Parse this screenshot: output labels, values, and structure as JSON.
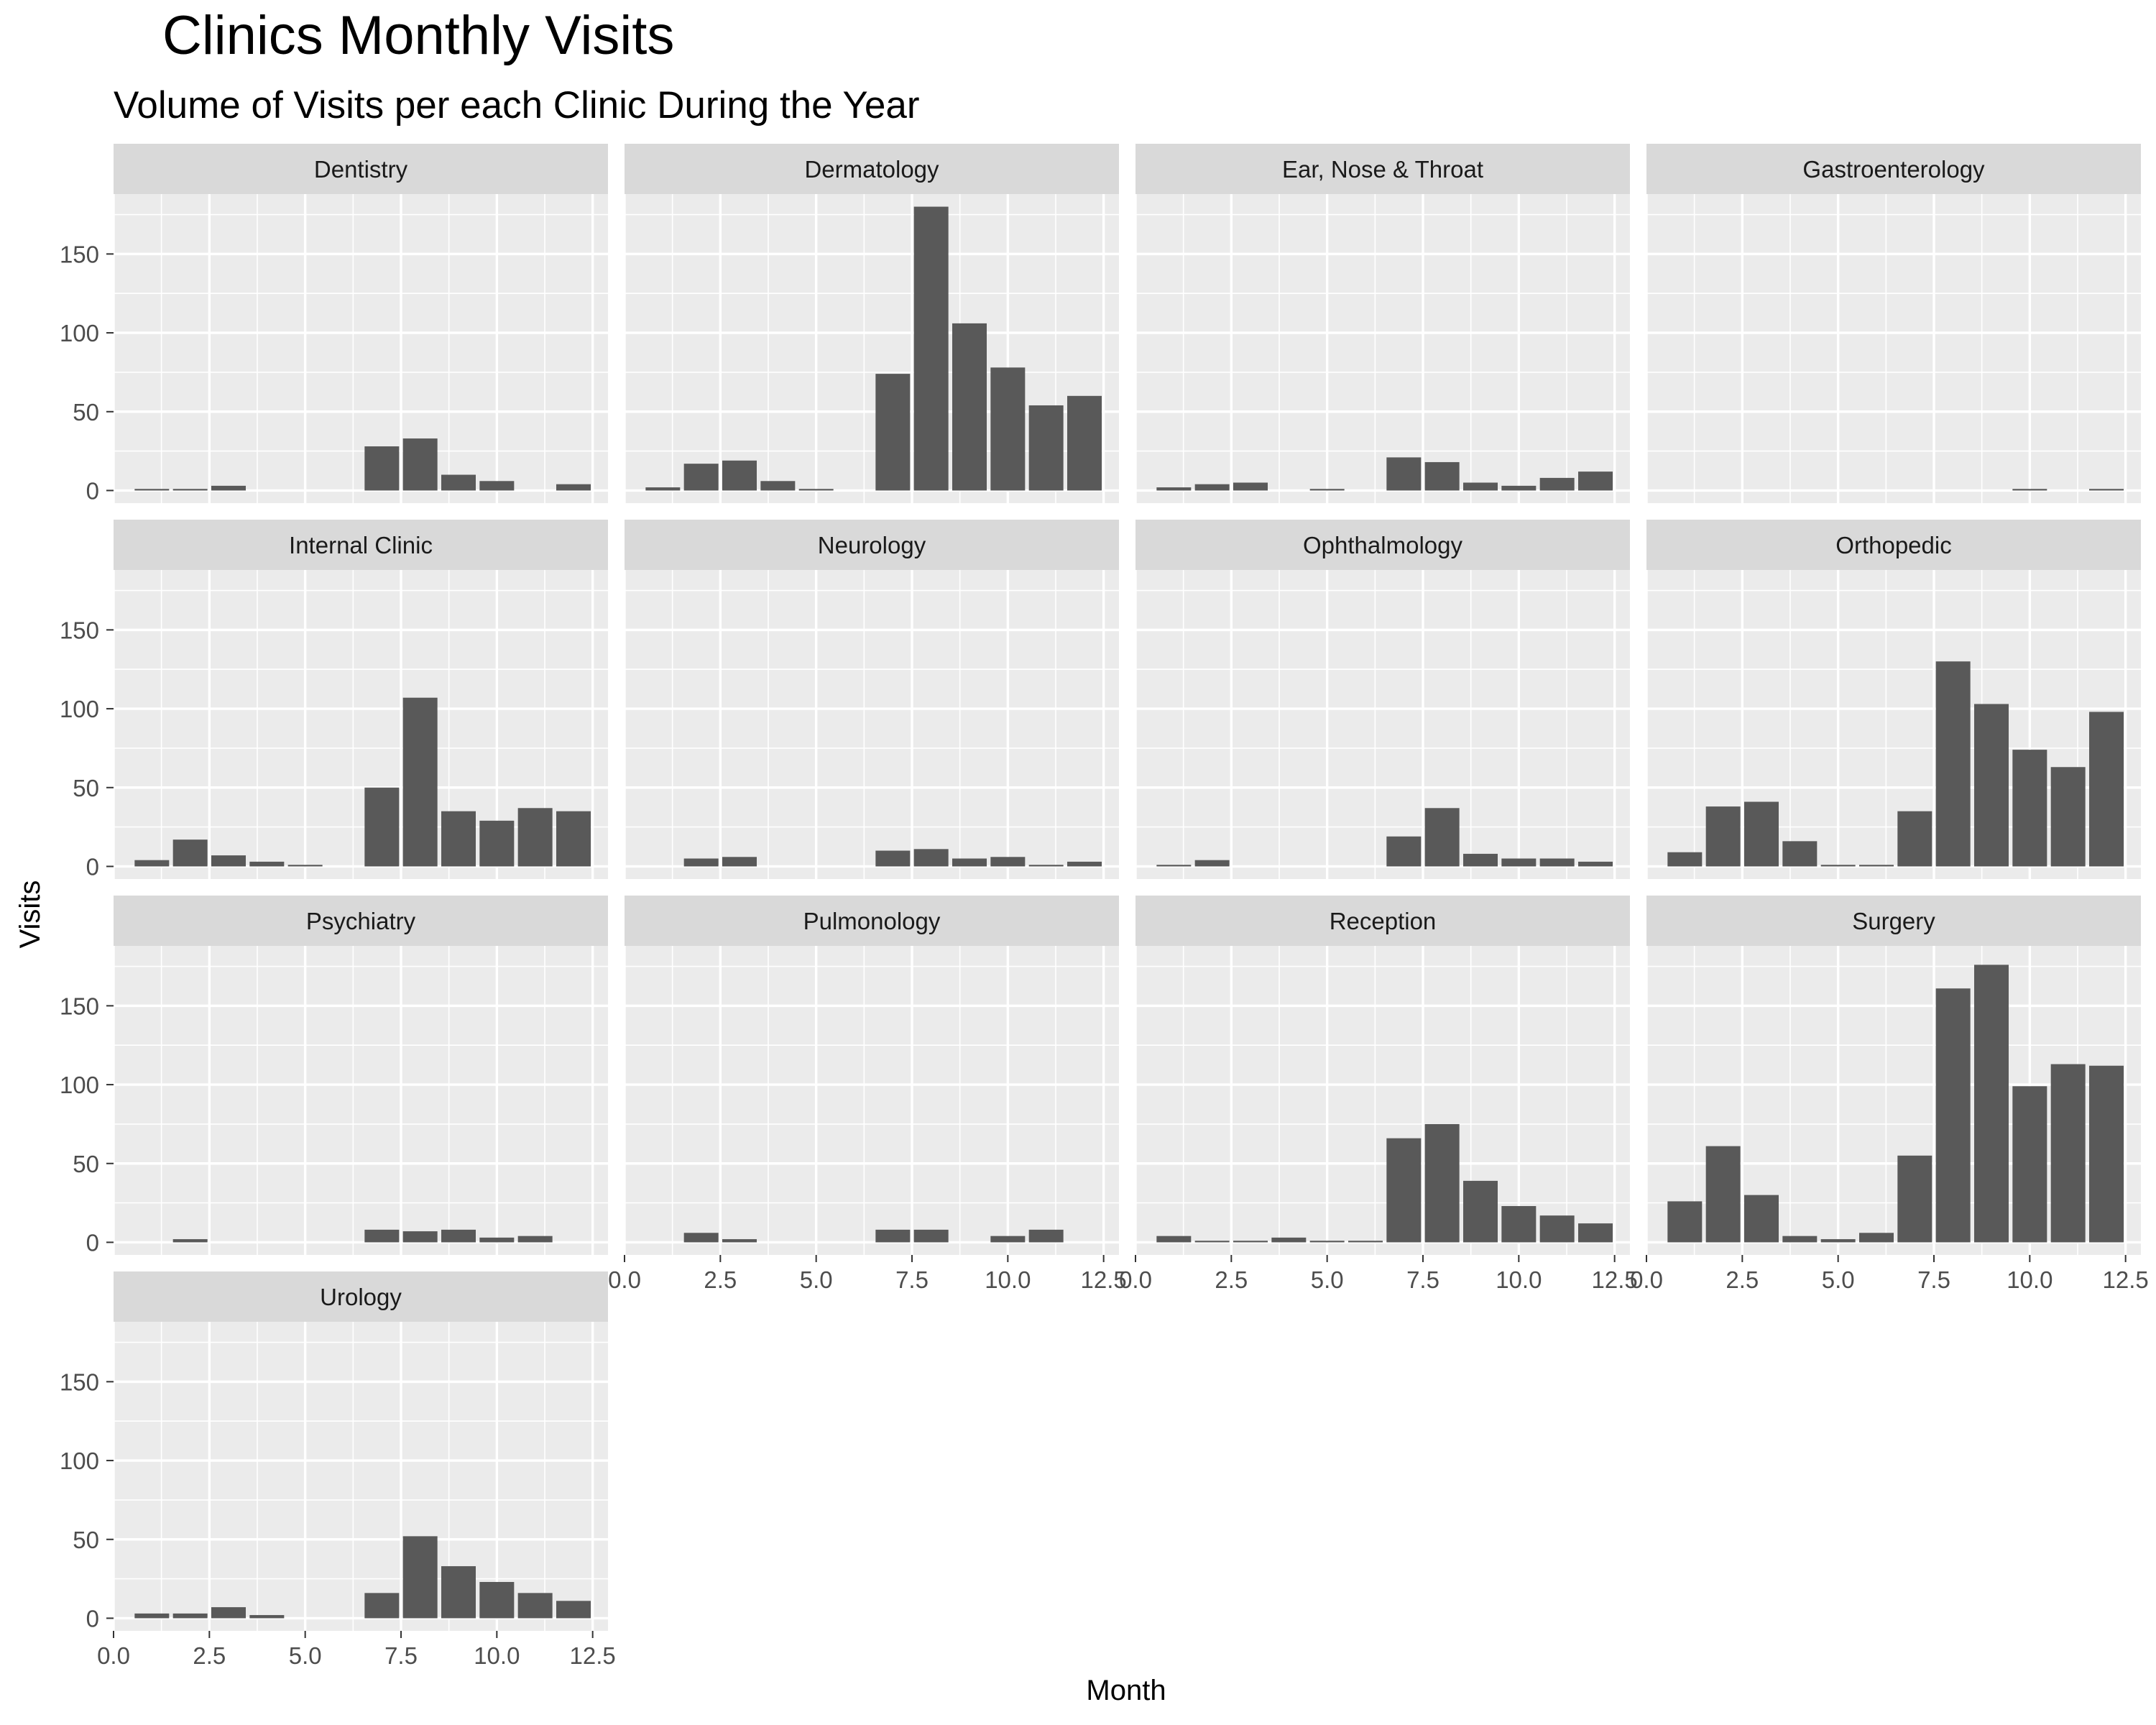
{
  "chart_data": {
    "type": "bar",
    "title": "Clinics Monthly Visits",
    "subtitle": "Volume of Visits per each Clinic During the Year",
    "xlabel": "Month",
    "ylabel": "Visits",
    "xlim": [
      0,
      12.9
    ],
    "ylim": [
      -8,
      188
    ],
    "x_ticks": [
      0,
      2.5,
      5,
      7.5,
      10,
      12.5
    ],
    "x_tick_labels": [
      "0.0",
      "2.5",
      "5.0",
      "7.5",
      "10.0",
      "12.5"
    ],
    "y_ticks": [
      0,
      50,
      100,
      150
    ],
    "y_tick_labels": [
      "0",
      "50",
      "100",
      "150"
    ],
    "grid": true,
    "facet_layout": "4 columns, 4 rows",
    "colors": {
      "bar": "#595959",
      "panel_background": "#ebebeb",
      "grid_major": "#ffffff",
      "strip_background": "#d9d9d9"
    },
    "months": [
      1,
      2,
      3,
      4,
      5,
      6,
      7,
      8,
      9,
      10,
      11,
      12
    ],
    "panels": [
      {
        "name": "Dentistry",
        "values": [
          1,
          1,
          3,
          0,
          0,
          0,
          28,
          33,
          10,
          6,
          0,
          4
        ]
      },
      {
        "name": "Dermatology",
        "values": [
          2,
          17,
          19,
          6,
          1,
          0,
          74,
          180,
          106,
          78,
          54,
          60
        ]
      },
      {
        "name": "Ear, Nose & Throat",
        "values": [
          2,
          4,
          5,
          0,
          1,
          0,
          21,
          18,
          5,
          3,
          8,
          12
        ]
      },
      {
        "name": "Gastroenterology",
        "values": [
          0,
          0,
          0,
          0,
          0,
          0,
          0,
          0,
          0,
          1,
          0,
          1
        ]
      },
      {
        "name": "Internal Clinic",
        "values": [
          4,
          17,
          7,
          3,
          1,
          0,
          50,
          107,
          35,
          29,
          37,
          35
        ]
      },
      {
        "name": "Neurology",
        "values": [
          0,
          5,
          6,
          0,
          0,
          0,
          10,
          11,
          5,
          6,
          1,
          3
        ]
      },
      {
        "name": "Ophthalmology",
        "values": [
          1,
          4,
          0,
          0,
          0,
          0,
          19,
          37,
          8,
          5,
          5,
          3
        ]
      },
      {
        "name": "Orthopedic",
        "values": [
          9,
          38,
          41,
          16,
          1,
          1,
          35,
          130,
          103,
          74,
          63,
          98
        ]
      },
      {
        "name": "Psychiatry",
        "values": [
          0,
          2,
          0,
          0,
          0,
          0,
          8,
          7,
          8,
          3,
          4,
          0
        ]
      },
      {
        "name": "Pulmonology",
        "values": [
          0,
          6,
          2,
          0,
          0,
          0,
          8,
          8,
          0,
          4,
          8,
          0
        ]
      },
      {
        "name": "Reception",
        "values": [
          4,
          1,
          1,
          3,
          1,
          1,
          66,
          75,
          39,
          23,
          17,
          12
        ]
      },
      {
        "name": "Surgery",
        "values": [
          26,
          61,
          30,
          4,
          2,
          6,
          55,
          161,
          176,
          99,
          113,
          112
        ]
      },
      {
        "name": "Urology",
        "values": [
          3,
          3,
          7,
          2,
          0,
          0,
          16,
          52,
          33,
          23,
          16,
          11
        ]
      }
    ]
  }
}
